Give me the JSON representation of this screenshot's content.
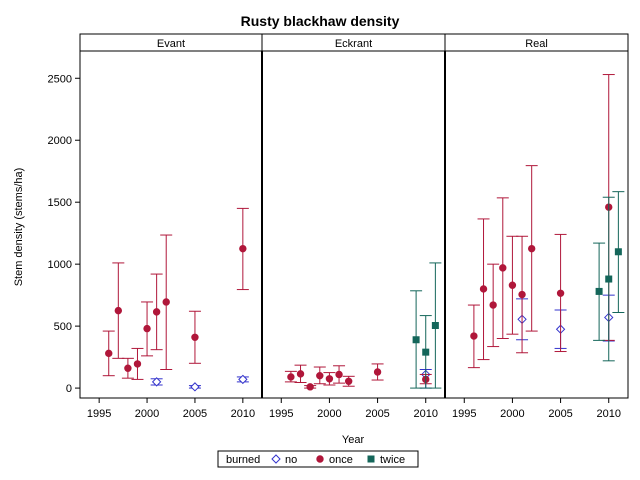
{
  "chart_data": {
    "type": "scatter",
    "title": "Rusty blackhaw density",
    "xlabel": "Year",
    "ylabel": "Stem density (stems/ha)",
    "xlim": [
      1993,
      2012
    ],
    "ylim": [
      -80,
      2720
    ],
    "x_ticks": [
      1995,
      2000,
      2005,
      2010
    ],
    "y_ticks": [
      0,
      500,
      1000,
      1500,
      2000,
      2500
    ],
    "panels": [
      "Evant",
      "Eckrant",
      "Real"
    ],
    "legend": {
      "title": "burned",
      "position": "bottom-center",
      "entries": [
        {
          "key": "no",
          "label": "no"
        },
        {
          "key": "once",
          "label": "once"
        },
        {
          "key": "twice",
          "label": "twice"
        }
      ]
    },
    "series": [
      {
        "name": "no",
        "color": "#3333cc",
        "marker": "diamond-open",
        "points": [
          {
            "panel": 0,
            "x": 2001,
            "y": 50,
            "lo": 25,
            "hi": 75
          },
          {
            "panel": 0,
            "x": 2005,
            "y": 10,
            "lo": 0,
            "hi": 20
          },
          {
            "panel": 0,
            "x": 2010,
            "y": 70,
            "lo": 50,
            "hi": 90
          },
          {
            "panel": 1,
            "x": 2010,
            "y": 110,
            "lo": 0,
            "hi": 150
          },
          {
            "panel": 2,
            "x": 2001,
            "y": 555,
            "lo": 390,
            "hi": 720
          },
          {
            "panel": 2,
            "x": 2005,
            "y": 475,
            "lo": 320,
            "hi": 630
          },
          {
            "panel": 2,
            "x": 2010,
            "y": 570,
            "lo": 380,
            "hi": 750
          }
        ]
      },
      {
        "name": "once",
        "color": "#b0173a",
        "marker": "circle",
        "points": [
          {
            "panel": 0,
            "x": 1996,
            "y": 280,
            "lo": 100,
            "hi": 460
          },
          {
            "panel": 0,
            "x": 1997,
            "y": 625,
            "lo": 240,
            "hi": 1010
          },
          {
            "panel": 0,
            "x": 1998,
            "y": 160,
            "lo": 80,
            "hi": 240
          },
          {
            "panel": 0,
            "x": 1999,
            "y": 195,
            "lo": 70,
            "hi": 320
          },
          {
            "panel": 0,
            "x": 2000,
            "y": 480,
            "lo": 260,
            "hi": 695
          },
          {
            "panel": 0,
            "x": 2001,
            "y": 615,
            "lo": 310,
            "hi": 920
          },
          {
            "panel": 0,
            "x": 2002,
            "y": 695,
            "lo": 150,
            "hi": 1235
          },
          {
            "panel": 0,
            "x": 2005,
            "y": 410,
            "lo": 200,
            "hi": 620
          },
          {
            "panel": 0,
            "x": 2010,
            "y": 1125,
            "lo": 795,
            "hi": 1450
          },
          {
            "panel": 1,
            "x": 1996,
            "y": 90,
            "lo": 50,
            "hi": 135
          },
          {
            "panel": 1,
            "x": 1997,
            "y": 115,
            "lo": 45,
            "hi": 185
          },
          {
            "panel": 1,
            "x": 1998,
            "y": 10,
            "lo": 0,
            "hi": 20
          },
          {
            "panel": 1,
            "x": 1999,
            "y": 100,
            "lo": 35,
            "hi": 170
          },
          {
            "panel": 1,
            "x": 2000,
            "y": 75,
            "lo": 25,
            "hi": 125
          },
          {
            "panel": 1,
            "x": 2001,
            "y": 110,
            "lo": 40,
            "hi": 180
          },
          {
            "panel": 1,
            "x": 2002,
            "y": 55,
            "lo": 15,
            "hi": 95
          },
          {
            "panel": 1,
            "x": 2005,
            "y": 130,
            "lo": 65,
            "hi": 195
          },
          {
            "panel": 1,
            "x": 2010,
            "y": 70,
            "lo": 35,
            "hi": 110
          },
          {
            "panel": 2,
            "x": 1996,
            "y": 420,
            "lo": 165,
            "hi": 670
          },
          {
            "panel": 2,
            "x": 1997,
            "y": 800,
            "lo": 230,
            "hi": 1365
          },
          {
            "panel": 2,
            "x": 1998,
            "y": 670,
            "lo": 335,
            "hi": 1000
          },
          {
            "panel": 2,
            "x": 1999,
            "y": 970,
            "lo": 400,
            "hi": 1535
          },
          {
            "panel": 2,
            "x": 2000,
            "y": 830,
            "lo": 435,
            "hi": 1225
          },
          {
            "panel": 2,
            "x": 2001,
            "y": 755,
            "lo": 285,
            "hi": 1225
          },
          {
            "panel": 2,
            "x": 2002,
            "y": 1125,
            "lo": 460,
            "hi": 1795
          },
          {
            "panel": 2,
            "x": 2005,
            "y": 765,
            "lo": 295,
            "hi": 1240
          },
          {
            "panel": 2,
            "x": 2010,
            "y": 1460,
            "lo": 385,
            "hi": 2530
          }
        ]
      },
      {
        "name": "twice",
        "color": "#14665a",
        "marker": "square",
        "points": [
          {
            "panel": 1,
            "x": 2009,
            "y": 390,
            "lo": 0,
            "hi": 785
          },
          {
            "panel": 1,
            "x": 2010,
            "y": 290,
            "lo": 0,
            "hi": 585
          },
          {
            "panel": 1,
            "x": 2011,
            "y": 505,
            "lo": 0,
            "hi": 1010
          },
          {
            "panel": 2,
            "x": 2009,
            "y": 780,
            "lo": 385,
            "hi": 1170
          },
          {
            "panel": 2,
            "x": 2010,
            "y": 880,
            "lo": 220,
            "hi": 1540
          },
          {
            "panel": 2,
            "x": 2011,
            "y": 1100,
            "lo": 610,
            "hi": 1585
          }
        ]
      }
    ]
  }
}
